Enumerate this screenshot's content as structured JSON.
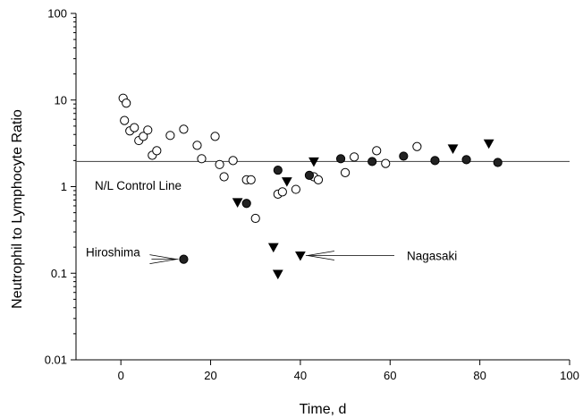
{
  "chart_data": {
    "type": "scatter",
    "title": "",
    "xlabel": "Time, d",
    "ylabel": "Neutrophil to Lymphocyte Ratio",
    "xlim": [
      -10,
      100
    ],
    "ylim": [
      0.01,
      100
    ],
    "yscale": "log",
    "grid": false,
    "x_ticks": [
      {
        "value": 0,
        "label": "0"
      },
      {
        "value": 20,
        "label": "20"
      },
      {
        "value": 40,
        "label": "40"
      },
      {
        "value": 60,
        "label": "60"
      },
      {
        "value": 80,
        "label": "80"
      },
      {
        "value": 100,
        "label": "100"
      }
    ],
    "y_ticks": [
      {
        "value": 0.01,
        "label": "0.01"
      },
      {
        "value": 0.1,
        "label": "0.1"
      },
      {
        "value": 1,
        "label": "1"
      },
      {
        "value": 10,
        "label": "10"
      },
      {
        "value": 100,
        "label": "100"
      }
    ],
    "control_line": {
      "y": 1.95,
      "label": "N/L Control Line"
    },
    "series": [
      {
        "marker": "open-circle",
        "points": [
          [
            0.5,
            10.5
          ],
          [
            0.8,
            5.8
          ],
          [
            1.2,
            9.2
          ],
          [
            2,
            4.4
          ],
          [
            3,
            4.8
          ],
          [
            4,
            3.4
          ],
          [
            5,
            3.8
          ],
          [
            6,
            4.5
          ],
          [
            7,
            2.3
          ],
          [
            8,
            2.6
          ],
          [
            11,
            3.9
          ],
          [
            14,
            4.6
          ],
          [
            17,
            3.0
          ],
          [
            18,
            2.1
          ],
          [
            21,
            3.8
          ],
          [
            22,
            1.8
          ],
          [
            23,
            1.3
          ],
          [
            25,
            2.0
          ],
          [
            28,
            1.2
          ],
          [
            29,
            1.2
          ],
          [
            30,
            0.43
          ],
          [
            35,
            0.82
          ],
          [
            36,
            0.87
          ],
          [
            39,
            0.93
          ],
          [
            43,
            1.3
          ],
          [
            44,
            1.2
          ],
          [
            50,
            1.45
          ],
          [
            52,
            2.2
          ],
          [
            57,
            2.6
          ],
          [
            59,
            1.85
          ],
          [
            66,
            2.9
          ]
        ]
      },
      {
        "marker": "filled-circle",
        "points": [
          [
            14,
            0.145
          ],
          [
            28,
            0.64
          ],
          [
            35,
            1.55
          ],
          [
            42,
            1.35
          ],
          [
            49,
            2.1
          ],
          [
            56,
            1.95
          ],
          [
            63,
            2.25
          ],
          [
            70,
            2.0
          ],
          [
            77,
            2.05
          ],
          [
            84,
            1.9
          ]
        ]
      },
      {
        "marker": "filled-triangle-down",
        "points": [
          [
            26,
            0.66
          ],
          [
            34,
            0.2
          ],
          [
            35,
            0.098
          ],
          [
            37,
            1.15
          ],
          [
            40,
            0.16
          ],
          [
            43,
            1.95
          ],
          [
            74,
            2.75
          ],
          [
            82,
            3.15
          ]
        ]
      }
    ],
    "annotations": [
      {
        "text": "Hiroshima",
        "target": [
          14,
          0.145
        ]
      },
      {
        "text": "Nagasaki",
        "target": [
          40,
          0.16
        ]
      }
    ]
  }
}
